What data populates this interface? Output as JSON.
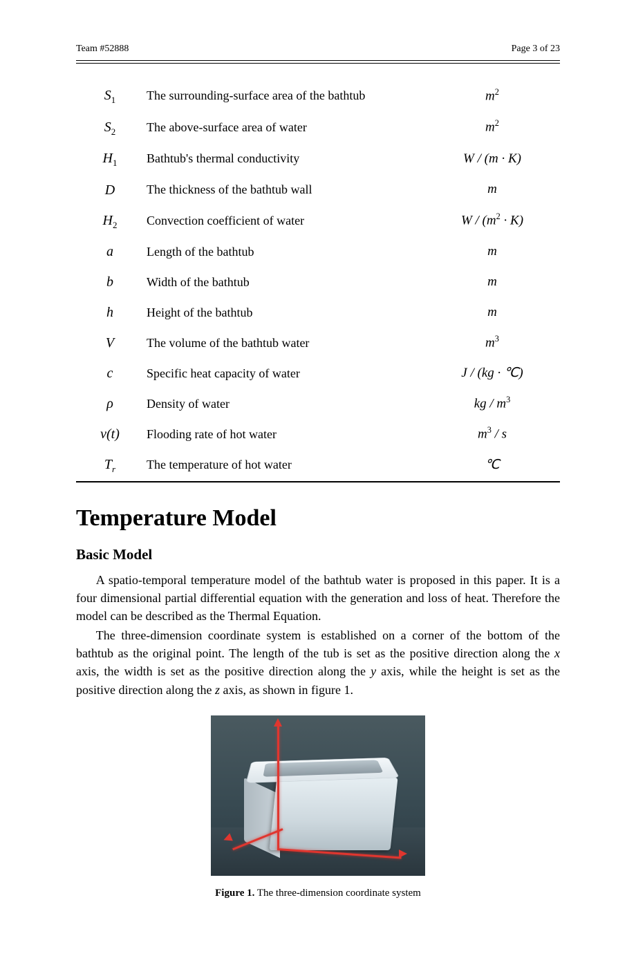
{
  "header": {
    "team": "Team #52888",
    "page": "Page 3 of 23"
  },
  "symbols": [
    {
      "sym_html": "<i>S</i><span class='sub'>1</span>",
      "desc": "The surrounding-surface area of the bathtub",
      "unit_html": "<i>m</i><span class='sup'>2</span>"
    },
    {
      "sym_html": "<i>S</i><span class='sub'>2</span>",
      "desc": "The above-surface area of water",
      "unit_html": "<i>m</i><span class='sup'>2</span>"
    },
    {
      "sym_html": "<i>H</i><span class='sub'>1</span>",
      "desc": "Bathtub's thermal conductivity",
      "unit_html": "<i>W</i> / (<i>m</i> · <i>K</i>)"
    },
    {
      "sym_html": "<i>D</i>",
      "desc": "The thickness of the bathtub wall",
      "unit_html": "<i>m</i>"
    },
    {
      "sym_html": "<i>H</i><span class='sub'>2</span>",
      "desc": "Convection coefficient of water",
      "unit_html": "<i>W</i> / (<i>m</i><span class='sup'>2</span> · <i>K</i>)"
    },
    {
      "sym_html": "<i>a</i>",
      "desc": "Length of the bathtub",
      "unit_html": "<i>m</i>"
    },
    {
      "sym_html": "<i>b</i>",
      "desc": "Width of the bathtub",
      "unit_html": "<i>m</i>"
    },
    {
      "sym_html": "<i>h</i>",
      "desc": "Height of the bathtub",
      "unit_html": "<i>m</i>"
    },
    {
      "sym_html": "<i>V</i>",
      "desc": "The volume of the bathtub water",
      "unit_html": "<i>m</i><span class='sup'>3</span>"
    },
    {
      "sym_html": "<i>c</i>",
      "desc": "Specific heat capacity of water",
      "unit_html": "<i>J</i> / (<i>kg</i> · ℃)"
    },
    {
      "sym_html": "<i>ρ</i>",
      "desc": "Density of water",
      "unit_html": "<i>kg</i> / <i>m</i><span class='sup'>3</span>"
    },
    {
      "sym_html": "<i>v</i>(<i>t</i>)",
      "desc": "Flooding rate of hot water",
      "unit_html": "<i>m</i><span class='sup'>3</span> / <i>s</i>"
    },
    {
      "sym_html": "<i>T</i><span class='sub-it'>r</span>",
      "desc": "The temperature of hot water",
      "unit_html": "℃"
    }
  ],
  "section": {
    "title": "Temperature Model",
    "subsection": "Basic Model",
    "para1": "A spatio-temporal temperature model of the bathtub water is proposed in this paper. It is a four dimensional partial differential equation with the generation and loss of heat. Therefore the model can be described as the Thermal Equation.",
    "para2_pre": "The three-dimension coordinate system is established on a corner of the bottom of the bathtub as the original point. The length of the tub is set as the positive direction along the ",
    "para2_x": "x",
    "para2_mid1": " axis, the width is set as the positive direction along the ",
    "para2_y": "y",
    "para2_mid2": " axis, while the height is set as the positive direction along the ",
    "para2_z": "z",
    "para2_post": " axis, as shown in figure 1."
  },
  "figure": {
    "label": "Figure 1.",
    "caption": " The three-dimension coordinate system",
    "axis_color": "#e0362f",
    "scene_bg_top": "#4a5a60",
    "scene_bg_bottom": "#2b3a42",
    "tub_light": "#e6eef2",
    "tub_shadow": "#b3c0c7"
  }
}
